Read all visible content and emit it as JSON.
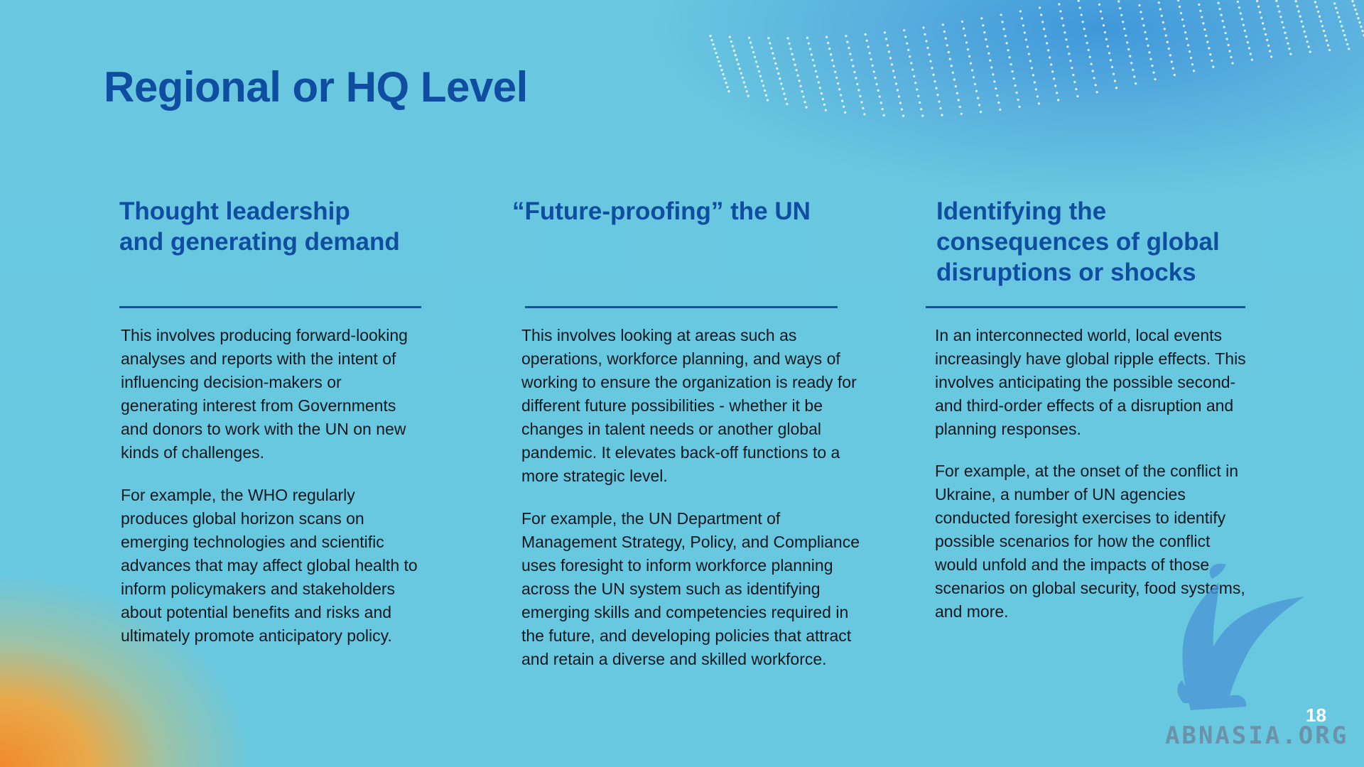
{
  "slide": {
    "title": "Regional or HQ Level",
    "page_number": "18"
  },
  "columns": [
    {
      "heading_lines": [
        "Thought leadership",
        "and generating demand"
      ],
      "paragraphs": [
        "This involves producing forward-looking analyses and reports with the intent of influencing decision-makers or generating interest from Governments and donors to work with the UN on new kinds of challenges.",
        "For example, the WHO regularly produces global horizon scans on emerging technologies and scientific advances that may affect global health to inform policymakers and stakeholders about potential benefits and risks and ultimately promote anticipatory policy."
      ]
    },
    {
      "heading_lines": [
        "“Future-proofing” the UN"
      ],
      "paragraphs": [
        "This involves looking at areas such as operations, workforce planning, and ways of working to ensure the organization is ready for different future possibilities -  whether it be changes in talent needs or another global pandemic. It elevates back-off functions to a more strategic level.",
        "For example, the UN Department of Management Strategy, Policy, and Compliance uses foresight to inform workforce planning across the UN system such as identifying emerging skills and competencies required in the future, and developing policies that attract and retain a diverse and skilled workforce."
      ]
    },
    {
      "heading_lines": [
        "Identifying the",
        "consequences of global",
        "disruptions or shocks"
      ],
      "paragraphs": [
        "In an interconnected world, local events increasingly have global ripple effects. This involves anticipating the possible second- and third-order effects of a disruption and planning responses.",
        "For example, at the onset of the conflict in Ukraine, a number of UN agencies conducted foresight exercises to identify possible scenarios for how the conflict would unfold and the impacts of those scenarios on global security, food systems, and more."
      ]
    }
  ],
  "watermark": {
    "text": "ABNASIA.ORG",
    "icon": "griffin-logo-icon"
  },
  "colors": {
    "title": "#0f4da0",
    "divider": "#1a4f9c",
    "body_text": "#101820",
    "background": "#66c9e0"
  }
}
